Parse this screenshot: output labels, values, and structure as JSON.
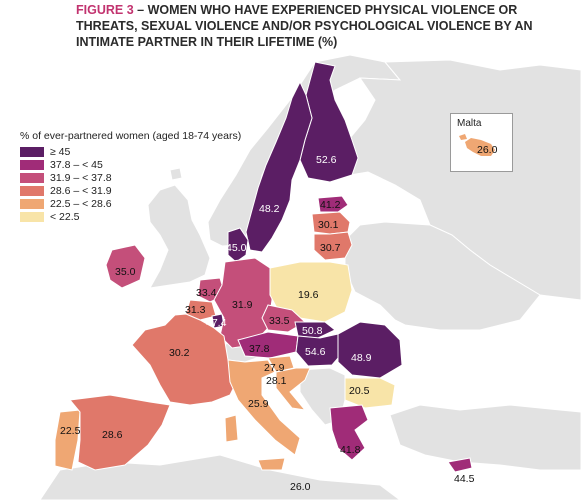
{
  "title": {
    "figure_label": "FIGURE 3",
    "separator": " – ",
    "text": "WOMEN WHO HAVE EXPERIENCED PHYSICAL VIOLENCE OR THREATS, SEXUAL VIOLENCE AND/OR PSYCHOLOGICAL VIOLENCE BY AN INTIMATE PARTNER IN THEIR LIFETIME (%)"
  },
  "legend": {
    "title": "% of ever-partnered women (aged 18-74 years)",
    "classes": [
      {
        "label": "≥ 45",
        "color": "#5b1e64"
      },
      {
        "label": "37.8 – < 45",
        "color": "#a02c78"
      },
      {
        "label": "31.9 – < 37.8",
        "color": "#c44f7a"
      },
      {
        "label": "28.6 – < 31.9",
        "color": "#e0786a"
      },
      {
        "label": "22.5 – < 28.6",
        "color": "#efa773"
      },
      {
        "label": "< 22.5",
        "color": "#f8e4a8"
      }
    ]
  },
  "inset": {
    "label": "Malta",
    "value": "26.0"
  },
  "colors": {
    "sea": "#ffffff",
    "non_eu_land": "#e2e2e2",
    "border": "#ffffff"
  },
  "countries": [
    {
      "name": "Finland",
      "value": "52.6",
      "class": 0
    },
    {
      "name": "Sweden",
      "value": "48.2",
      "class": 0
    },
    {
      "name": "Estonia",
      "value": "41.2",
      "class": 1
    },
    {
      "name": "Latvia",
      "value": "30.1",
      "class": 3
    },
    {
      "name": "Lithuania",
      "value": "30.7",
      "class": 3
    },
    {
      "name": "Denmark",
      "value": "45.0",
      "class": 0
    },
    {
      "name": "Ireland",
      "value": "35.0",
      "class": 2
    },
    {
      "name": "Netherlands",
      "value": "33.4",
      "class": 2
    },
    {
      "name": "Belgium",
      "value": "31.3",
      "class": 3
    },
    {
      "name": "Luxembourg",
      "value": "47.4",
      "class": 0
    },
    {
      "name": "Germany",
      "value": "31.9",
      "class": 2
    },
    {
      "name": "Poland",
      "value": "19.6",
      "class": 5
    },
    {
      "name": "Czechia",
      "value": "33.5",
      "class": 2
    },
    {
      "name": "Slovakia",
      "value": "50.8",
      "class": 0
    },
    {
      "name": "Austria",
      "value": "37.8",
      "class": 1
    },
    {
      "name": "Hungary",
      "value": "54.6",
      "class": 0
    },
    {
      "name": "Romania",
      "value": "48.9",
      "class": 0
    },
    {
      "name": "Slovenia",
      "value": "27.9",
      "class": 4
    },
    {
      "name": "Croatia",
      "value": "28.1",
      "class": 4
    },
    {
      "name": "Bulgaria",
      "value": "20.5",
      "class": 5
    },
    {
      "name": "France",
      "value": "30.2",
      "class": 3
    },
    {
      "name": "Italy",
      "value": "25.9",
      "class": 4
    },
    {
      "name": "Portugal",
      "value": "22.5",
      "class": 4
    },
    {
      "name": "Spain",
      "value": "28.6",
      "class": 3
    },
    {
      "name": "Greece",
      "value": "41.8",
      "class": 1
    },
    {
      "name": "Cyprus",
      "value": "44.5",
      "class": 1
    },
    {
      "name": "Malta",
      "value": "26.0",
      "class": 4
    }
  ]
}
